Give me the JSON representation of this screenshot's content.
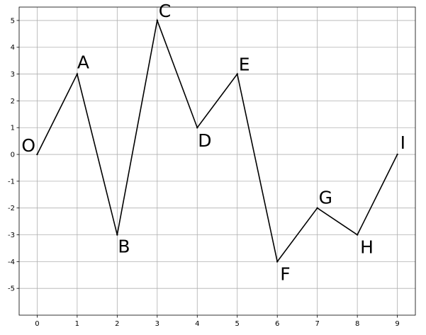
{
  "chart_data": {
    "type": "line",
    "grid": true,
    "x_ticks": [
      "0",
      "1",
      "2",
      "3",
      "4",
      "5",
      "6",
      "7",
      "8",
      "9"
    ],
    "y_ticks": [
      "-5",
      "-4",
      "-3",
      "-2",
      "-1",
      "0",
      "1",
      "2",
      "3",
      "4",
      "5"
    ],
    "xlim": [
      -0.45,
      9.45
    ],
    "ylim": [
      -6,
      5.5
    ],
    "points": [
      {
        "label": "O",
        "x": 0,
        "y": 0
      },
      {
        "label": "A",
        "x": 1,
        "y": 3
      },
      {
        "label": "B",
        "x": 2,
        "y": -3
      },
      {
        "label": "C",
        "x": 3,
        "y": 5
      },
      {
        "label": "D",
        "x": 4,
        "y": 1
      },
      {
        "label": "E",
        "x": 5,
        "y": 3
      },
      {
        "label": "F",
        "x": 6,
        "y": -4
      },
      {
        "label": "G",
        "x": 7,
        "y": -2
      },
      {
        "label": "H",
        "x": 8,
        "y": -3
      },
      {
        "label": "I",
        "x": 9,
        "y": 0
      }
    ],
    "line_color": "#000000",
    "grid_color": "#b0b0b0"
  }
}
